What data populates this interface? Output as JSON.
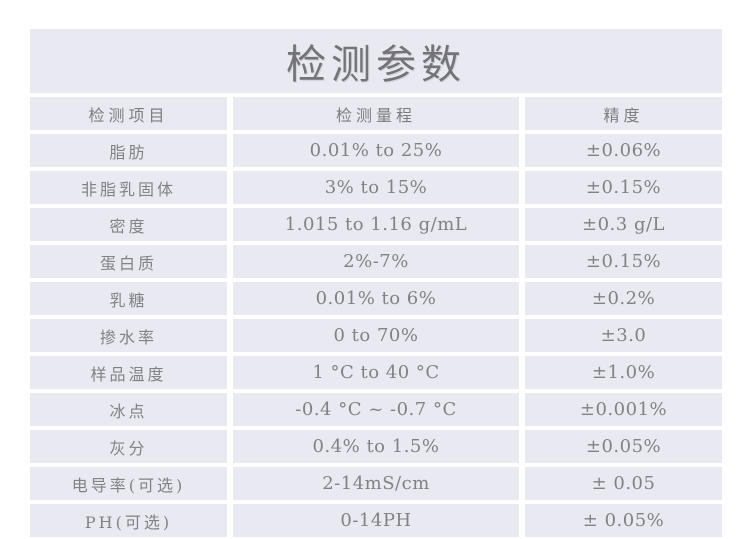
{
  "title": "检测参数",
  "table": {
    "headers": [
      "检测项目",
      "检测量程",
      "精度"
    ],
    "rows": [
      {
        "item": "脂肪",
        "range": "0.01% to 25%",
        "accuracy": "±0.06%"
      },
      {
        "item": "非脂乳固体",
        "range": "3% to 15%",
        "accuracy": "±0.15%"
      },
      {
        "item": "密度",
        "range": "1.015 to 1.16 g/mL",
        "accuracy": "±0.3 g/L"
      },
      {
        "item": "蛋白质",
        "range": "2%-7%",
        "accuracy": "±0.15%"
      },
      {
        "item": "乳糖",
        "range": "0.01% to 6%",
        "accuracy": "±0.2%"
      },
      {
        "item": "掺水率",
        "range": "0 to 70%",
        "accuracy": "±3.0"
      },
      {
        "item": "样品温度",
        "range": "1 °C to 40 °C",
        "accuracy": "±1.0%"
      },
      {
        "item": "冰点",
        "range": "-0.4 °C ~ -0.7 °C",
        "accuracy": "±0.001%"
      },
      {
        "item": "灰分",
        "range": "0.4% to 1.5%",
        "accuracy": "±0.05%"
      },
      {
        "item": "电导率(可选)",
        "range": "2-14mS/cm",
        "accuracy": "± 0.05"
      },
      {
        "item": "PH(可选)",
        "range": "0-14PH",
        "accuracy": "± 0.05%"
      }
    ]
  },
  "colors": {
    "page_bg": "#ffffff",
    "cell_bg": "#e9e9f2",
    "body_text": "#818187",
    "title_text": "#747478"
  },
  "chart_data": {
    "type": "table",
    "title": "检测参数",
    "columns": [
      "检测项目",
      "检测量程",
      "精度"
    ],
    "rows": [
      [
        "脂肪",
        "0.01% to 25%",
        "±0.06%"
      ],
      [
        "非脂乳固体",
        "3% to 15%",
        "±0.15%"
      ],
      [
        "密度",
        "1.015 to 1.16 g/mL",
        "±0.3 g/L"
      ],
      [
        "蛋白质",
        "2%-7%",
        "±0.15%"
      ],
      [
        "乳糖",
        "0.01% to 6%",
        "±0.2%"
      ],
      [
        "掺水率",
        "0 to 70%",
        "±3.0"
      ],
      [
        "样品温度",
        "1 °C to 40 °C",
        "±1.0%"
      ],
      [
        "冰点",
        "-0.4 °C ~ -0.7 °C",
        "±0.001%"
      ],
      [
        "灰分",
        "0.4% to 1.5%",
        "±0.05%"
      ],
      [
        "电导率(可选)",
        "2-14mS/cm",
        "± 0.05"
      ],
      [
        "PH(可选)",
        "0-14PH",
        "± 0.05%"
      ]
    ]
  }
}
